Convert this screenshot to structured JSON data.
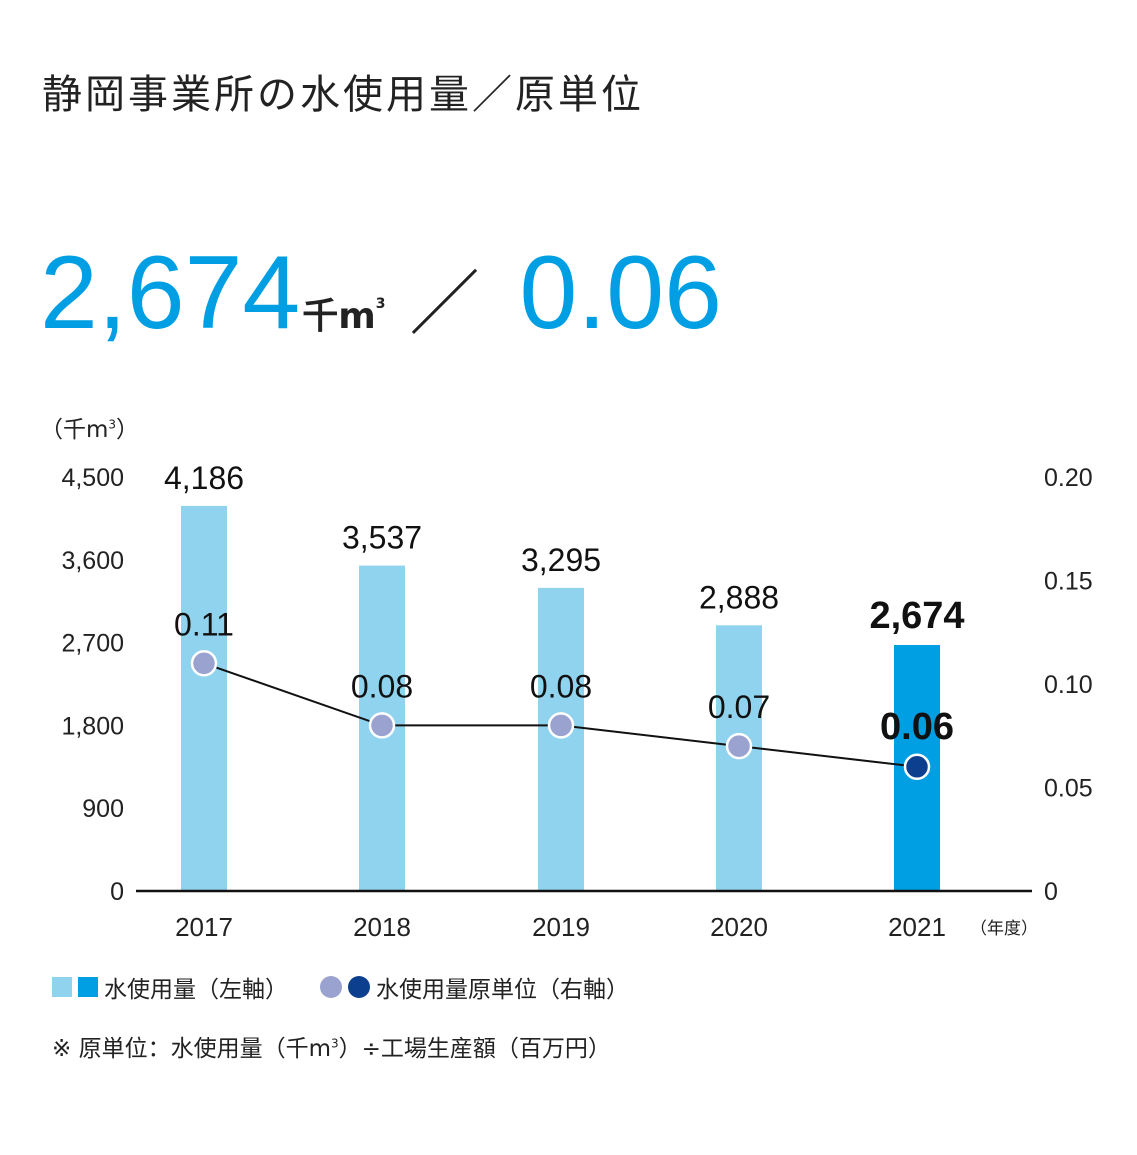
{
  "title": "静岡事業所の水使用量／原単位",
  "headline": {
    "value_usage": "2,674",
    "unit_usage": "千m",
    "unit_superscript": "3",
    "slash": "／",
    "value_intensity": "0.06"
  },
  "left_axis_unit": "（千m",
  "left_axis_unit_sup": "3",
  "left_axis_unit_close": "）",
  "x_unit": "（年度）",
  "legend": {
    "bars_label": "水使用量（左軸）",
    "points_label": "水使用量原単位（右軸）"
  },
  "note": {
    "prefix": "※ 原単位：水使用量（千m",
    "sup": "3",
    "suffix": "）÷工場生産額（百万円）"
  },
  "colors": {
    "bar_light": "#8fd3ee",
    "bar_highlight": "#009fe3",
    "point_light": "#9aa3cf",
    "point_highlight": "#0d3f8f",
    "line": "#111111"
  },
  "chart_data": {
    "type": "bar",
    "categories": [
      "2017",
      "2018",
      "2019",
      "2020",
      "2021"
    ],
    "series": [
      {
        "name": "水使用量（左軸）",
        "type": "bar",
        "axis": "left",
        "values": [
          4186,
          3537,
          3295,
          2888,
          2674
        ],
        "labels": [
          "4,186",
          "3,537",
          "3,295",
          "2,888",
          "2,674"
        ]
      },
      {
        "name": "水使用量原単位（右軸）",
        "type": "line",
        "axis": "right",
        "values": [
          0.11,
          0.08,
          0.08,
          0.07,
          0.06
        ],
        "labels": [
          "0.11",
          "0.08",
          "0.08",
          "0.07",
          "0.06"
        ]
      }
    ],
    "highlight_index": 4,
    "left_axis": {
      "ylim": [
        0,
        4500
      ],
      "ticks": [
        0,
        900,
        1800,
        2700,
        3600,
        4500
      ],
      "tick_labels": [
        "0",
        "900",
        "1,800",
        "2,700",
        "3,600",
        "4,500"
      ]
    },
    "right_axis": {
      "ylim": [
        0,
        0.2
      ],
      "ticks": [
        0,
        0.05,
        0.1,
        0.15,
        0.2
      ],
      "tick_labels": [
        "0",
        "0.05",
        "0.10",
        "0.15",
        "0.20"
      ]
    },
    "grid": false,
    "legend_position": "bottom-left"
  }
}
